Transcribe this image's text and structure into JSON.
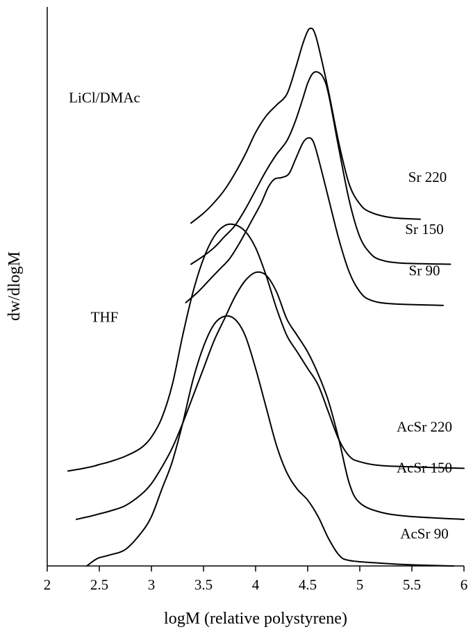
{
  "chart_data": {
    "type": "line",
    "title": "",
    "xlabel": "logM (relative polystyrene)",
    "ylabel": "dw/dlogM",
    "xlim": [
      2,
      6
    ],
    "xticks": [
      "2",
      "2.5",
      "3",
      "3.5",
      "4",
      "4.5",
      "5",
      "5.5",
      "6"
    ],
    "y_axis_ticks": false,
    "grid": false,
    "legend": "none",
    "group_labels": [
      {
        "text": "LiCl/DMAc",
        "x": 2.55,
        "y": 0.845
      },
      {
        "text": "THF",
        "x": 2.55,
        "y": 0.445
      }
    ],
    "series": [
      {
        "name": "Sr 220",
        "label_pos": {
          "x": 5.65,
          "y": 0.7
        },
        "points": [
          [
            3.38,
            0.625
          ],
          [
            3.5,
            0.643
          ],
          [
            3.6,
            0.662
          ],
          [
            3.7,
            0.685
          ],
          [
            3.8,
            0.715
          ],
          [
            3.9,
            0.75
          ],
          [
            4.0,
            0.79
          ],
          [
            4.1,
            0.82
          ],
          [
            4.2,
            0.84
          ],
          [
            4.3,
            0.86
          ],
          [
            4.38,
            0.905
          ],
          [
            4.45,
            0.95
          ],
          [
            4.5,
            0.975
          ],
          [
            4.53,
            0.98
          ],
          [
            4.56,
            0.975
          ],
          [
            4.6,
            0.95
          ],
          [
            4.7,
            0.865
          ],
          [
            4.8,
            0.77
          ],
          [
            4.9,
            0.695
          ],
          [
            5.0,
            0.66
          ],
          [
            5.1,
            0.645
          ],
          [
            5.3,
            0.635
          ],
          [
            5.58,
            0.632
          ]
        ]
      },
      {
        "name": "Sr 150",
        "label_pos": {
          "x": 5.62,
          "y": 0.605
        },
        "points": [
          [
            3.38,
            0.55
          ],
          [
            3.5,
            0.565
          ],
          [
            3.6,
            0.58
          ],
          [
            3.7,
            0.6
          ],
          [
            3.8,
            0.62
          ],
          [
            3.9,
            0.65
          ],
          [
            4.0,
            0.685
          ],
          [
            4.1,
            0.72
          ],
          [
            4.2,
            0.75
          ],
          [
            4.3,
            0.775
          ],
          [
            4.38,
            0.81
          ],
          [
            4.45,
            0.85
          ],
          [
            4.5,
            0.88
          ],
          [
            4.55,
            0.898
          ],
          [
            4.6,
            0.9
          ],
          [
            4.65,
            0.89
          ],
          [
            4.7,
            0.86
          ],
          [
            4.8,
            0.76
          ],
          [
            4.9,
            0.665
          ],
          [
            5.0,
            0.6
          ],
          [
            5.1,
            0.57
          ],
          [
            5.2,
            0.558
          ],
          [
            5.4,
            0.552
          ],
          [
            5.87,
            0.55
          ]
        ]
      },
      {
        "name": "Sr 90",
        "label_pos": {
          "x": 5.62,
          "y": 0.53
        },
        "points": [
          [
            3.33,
            0.48
          ],
          [
            3.45,
            0.5
          ],
          [
            3.55,
            0.52
          ],
          [
            3.65,
            0.54
          ],
          [
            3.75,
            0.56
          ],
          [
            3.85,
            0.59
          ],
          [
            3.95,
            0.625
          ],
          [
            4.05,
            0.66
          ],
          [
            4.12,
            0.69
          ],
          [
            4.18,
            0.705
          ],
          [
            4.25,
            0.708
          ],
          [
            4.32,
            0.715
          ],
          [
            4.38,
            0.74
          ],
          [
            4.45,
            0.77
          ],
          [
            4.5,
            0.78
          ],
          [
            4.55,
            0.775
          ],
          [
            4.6,
            0.745
          ],
          [
            4.7,
            0.67
          ],
          [
            4.8,
            0.595
          ],
          [
            4.9,
            0.535
          ],
          [
            5.0,
            0.5
          ],
          [
            5.1,
            0.485
          ],
          [
            5.3,
            0.478
          ],
          [
            5.8,
            0.475
          ]
        ]
      },
      {
        "name": "AcSr 220",
        "label_pos": {
          "x": 5.62,
          "y": 0.245
        },
        "points": [
          [
            2.2,
            0.173
          ],
          [
            2.35,
            0.178
          ],
          [
            2.45,
            0.182
          ],
          [
            2.5,
            0.185
          ],
          [
            2.6,
            0.19
          ],
          [
            2.75,
            0.2
          ],
          [
            2.9,
            0.215
          ],
          [
            3.0,
            0.235
          ],
          [
            3.1,
            0.27
          ],
          [
            3.2,
            0.33
          ],
          [
            3.3,
            0.42
          ],
          [
            3.4,
            0.5
          ],
          [
            3.5,
            0.56
          ],
          [
            3.6,
            0.6
          ],
          [
            3.7,
            0.62
          ],
          [
            3.8,
            0.622
          ],
          [
            3.9,
            0.61
          ],
          [
            4.0,
            0.58
          ],
          [
            4.1,
            0.53
          ],
          [
            4.2,
            0.47
          ],
          [
            4.3,
            0.42
          ],
          [
            4.4,
            0.39
          ],
          [
            4.5,
            0.36
          ],
          [
            4.6,
            0.33
          ],
          [
            4.7,
            0.28
          ],
          [
            4.8,
            0.23
          ],
          [
            4.9,
            0.2
          ],
          [
            5.0,
            0.19
          ],
          [
            5.2,
            0.183
          ],
          [
            5.6,
            0.18
          ],
          [
            6.0,
            0.178
          ]
        ]
      },
      {
        "name": "AcSr 150",
        "label_pos": {
          "x": 5.62,
          "y": 0.17
        },
        "points": [
          [
            2.28,
            0.085
          ],
          [
            2.4,
            0.09
          ],
          [
            2.5,
            0.095
          ],
          [
            2.6,
            0.1
          ],
          [
            2.75,
            0.11
          ],
          [
            2.9,
            0.13
          ],
          [
            3.0,
            0.15
          ],
          [
            3.1,
            0.18
          ],
          [
            3.2,
            0.215
          ],
          [
            3.3,
            0.26
          ],
          [
            3.4,
            0.31
          ],
          [
            3.5,
            0.36
          ],
          [
            3.6,
            0.41
          ],
          [
            3.7,
            0.45
          ],
          [
            3.8,
            0.49
          ],
          [
            3.9,
            0.52
          ],
          [
            4.0,
            0.535
          ],
          [
            4.1,
            0.53
          ],
          [
            4.2,
            0.5
          ],
          [
            4.3,
            0.45
          ],
          [
            4.4,
            0.42
          ],
          [
            4.5,
            0.39
          ],
          [
            4.6,
            0.35
          ],
          [
            4.7,
            0.3
          ],
          [
            4.8,
            0.23
          ],
          [
            4.9,
            0.15
          ],
          [
            5.0,
            0.115
          ],
          [
            5.2,
            0.098
          ],
          [
            5.5,
            0.09
          ],
          [
            6.0,
            0.085
          ]
        ]
      },
      {
        "name": "AcSr 90",
        "label_pos": {
          "x": 5.62,
          "y": 0.05
        },
        "points": [
          [
            2.38,
            0.0
          ],
          [
            2.45,
            0.01
          ],
          [
            2.5,
            0.015
          ],
          [
            2.6,
            0.02
          ],
          [
            2.75,
            0.03
          ],
          [
            2.9,
            0.06
          ],
          [
            3.0,
            0.09
          ],
          [
            3.1,
            0.14
          ],
          [
            3.2,
            0.19
          ],
          [
            3.3,
            0.26
          ],
          [
            3.4,
            0.34
          ],
          [
            3.5,
            0.4
          ],
          [
            3.6,
            0.44
          ],
          [
            3.7,
            0.455
          ],
          [
            3.8,
            0.45
          ],
          [
            3.9,
            0.42
          ],
          [
            4.0,
            0.36
          ],
          [
            4.1,
            0.29
          ],
          [
            4.2,
            0.22
          ],
          [
            4.3,
            0.17
          ],
          [
            4.4,
            0.14
          ],
          [
            4.5,
            0.12
          ],
          [
            4.6,
            0.09
          ],
          [
            4.7,
            0.05
          ],
          [
            4.8,
            0.02
          ],
          [
            4.9,
            0.01
          ],
          [
            5.2,
            0.005
          ],
          [
            5.5,
            0.002
          ],
          [
            5.9,
            0.0
          ]
        ]
      }
    ]
  }
}
